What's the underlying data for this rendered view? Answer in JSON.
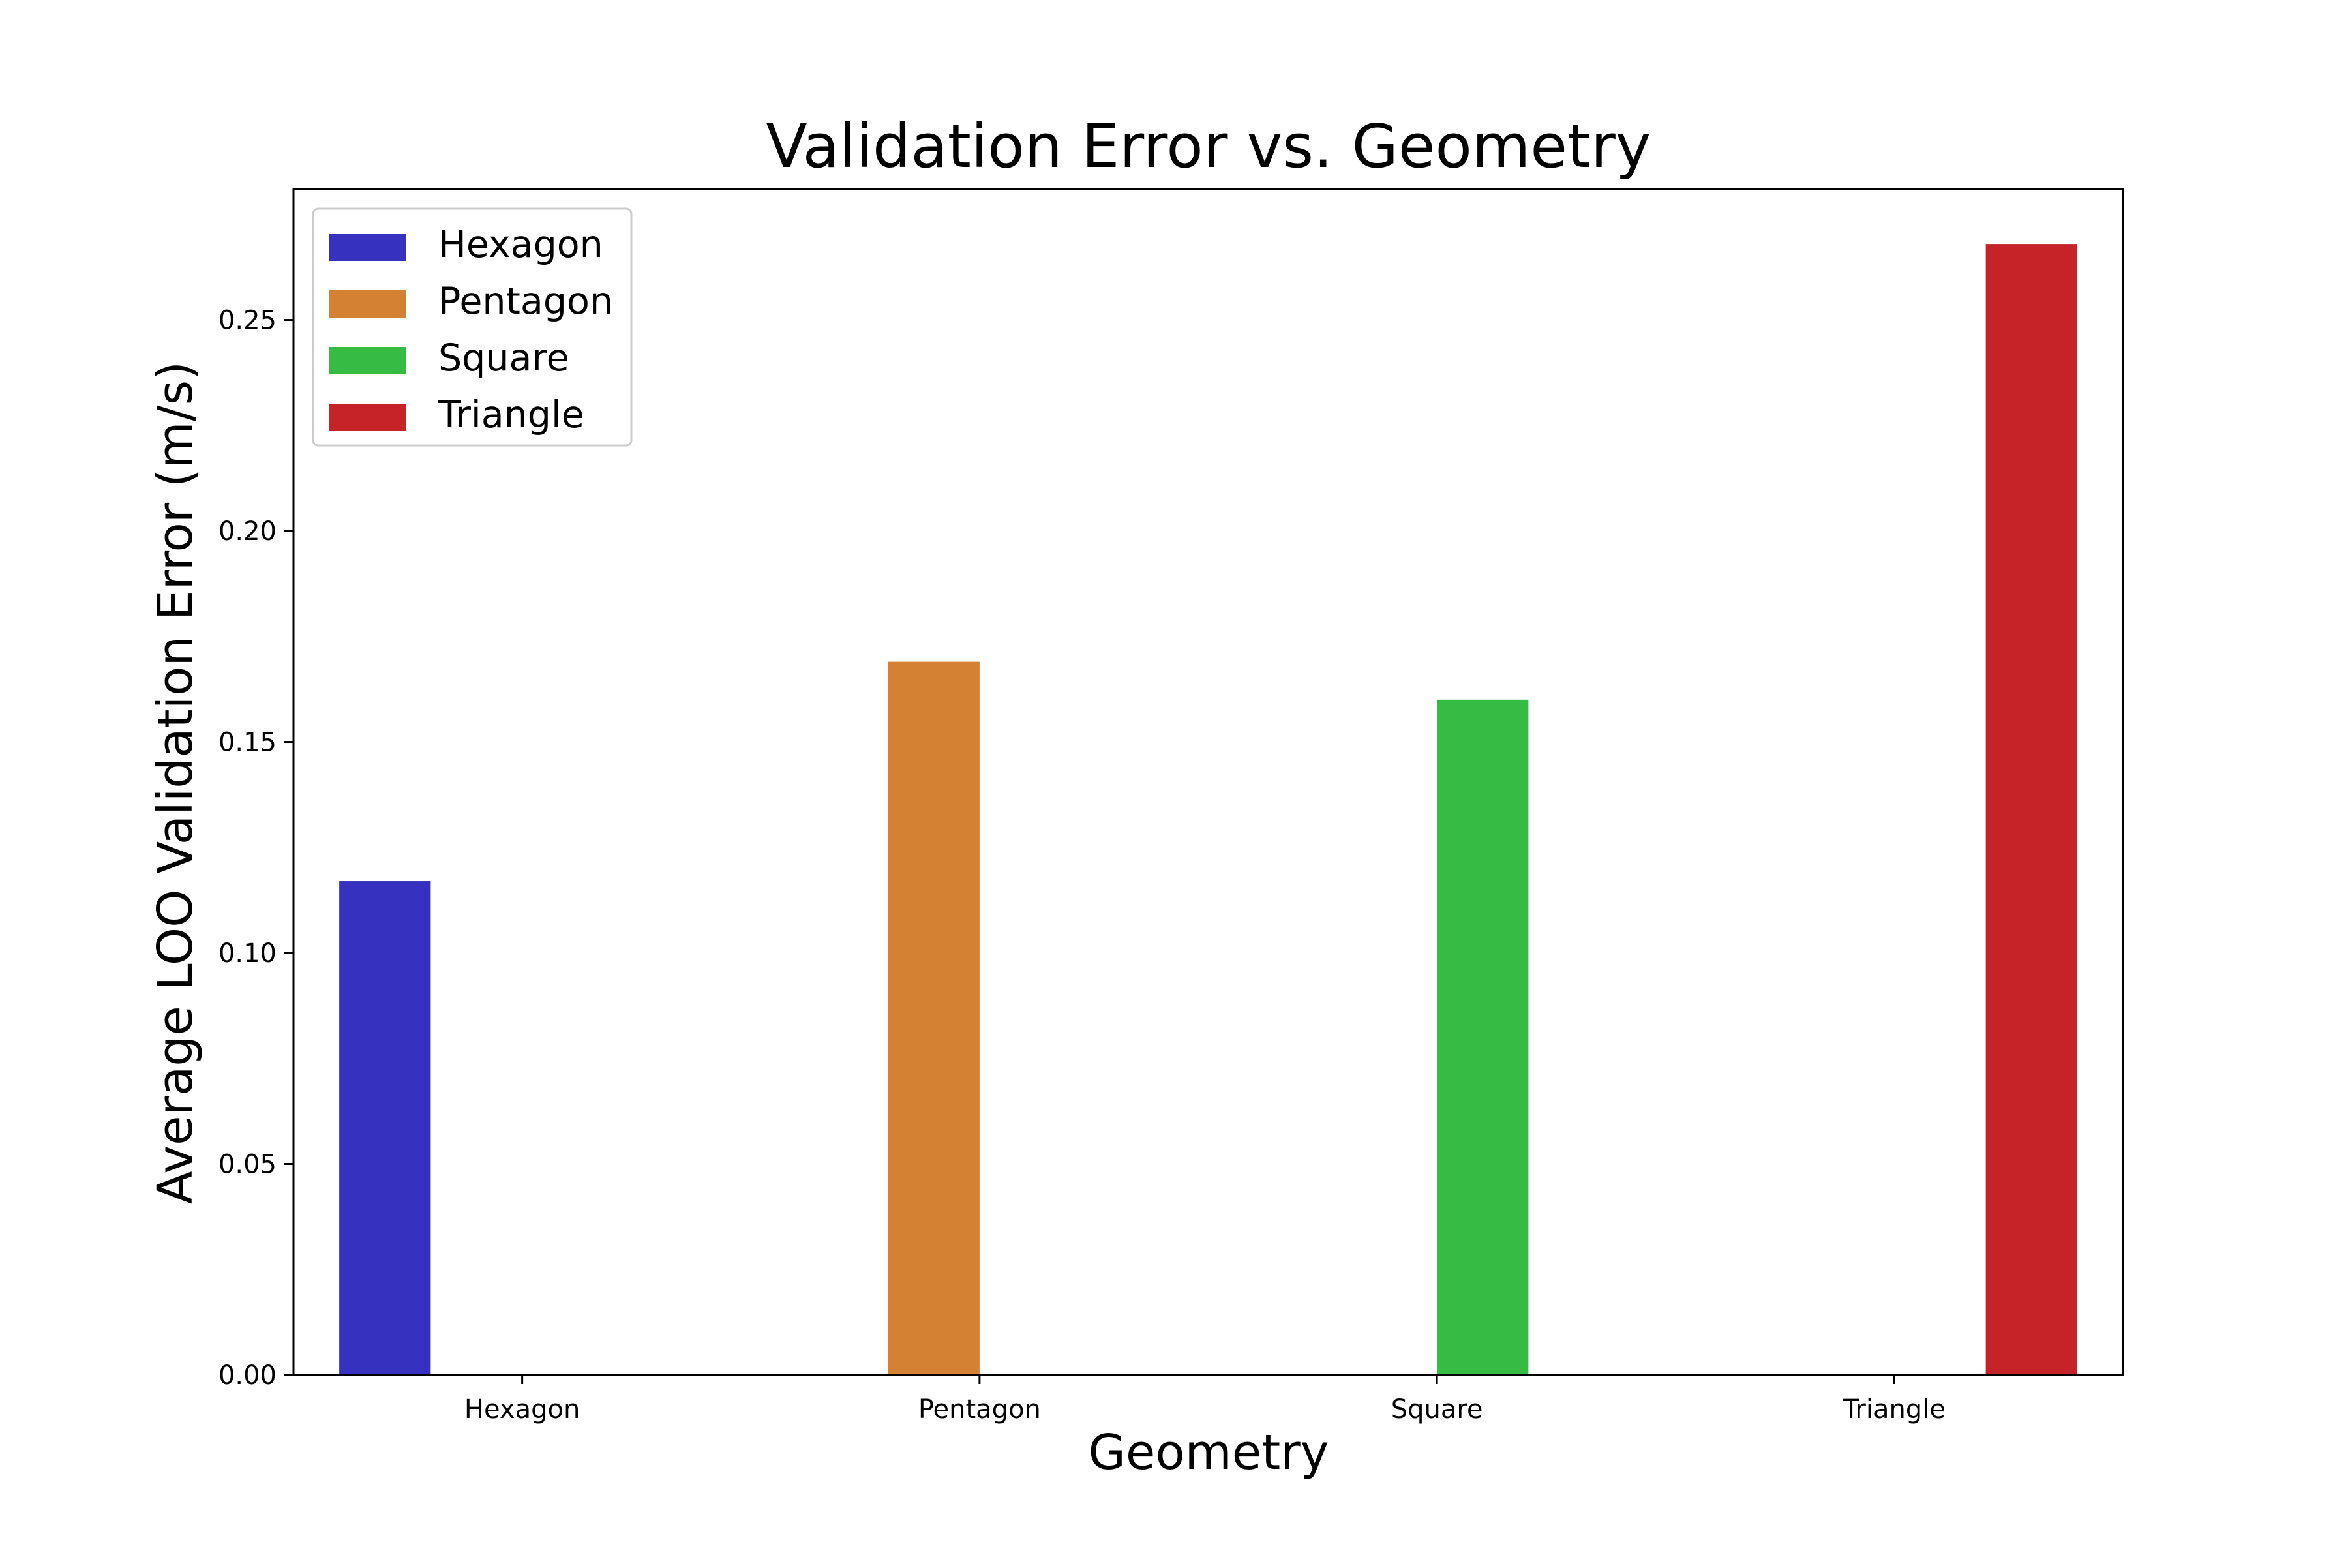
{
  "chart_data": {
    "type": "bar",
    "title": "Validation Error vs. Geometry",
    "xlabel": "Geometry",
    "ylabel": "Average LOO Validation Error (m/s)",
    "categories": [
      "Hexagon",
      "Pentagon",
      "Square",
      "Triangle"
    ],
    "series": [
      {
        "name": "Hexagon",
        "color": "#3632bf",
        "values": [
          0.117,
          null,
          null,
          null
        ]
      },
      {
        "name": "Pentagon",
        "color": "#d58133",
        "values": [
          null,
          0.169,
          null,
          null
        ]
      },
      {
        "name": "Square",
        "color": "#36bc45",
        "values": [
          null,
          null,
          0.16,
          null
        ]
      },
      {
        "name": "Triangle",
        "color": "#c52327",
        "values": [
          null,
          null,
          null,
          0.268
        ]
      }
    ],
    "ylim": [
      0,
      0.281
    ],
    "yticks": [
      0.0,
      0.05,
      0.1,
      0.15,
      0.2,
      0.25
    ],
    "ytick_labels": [
      "0.00",
      "0.05",
      "0.10",
      "0.15",
      "0.20",
      "0.25"
    ],
    "grid": false,
    "legend_position": "top-left"
  }
}
